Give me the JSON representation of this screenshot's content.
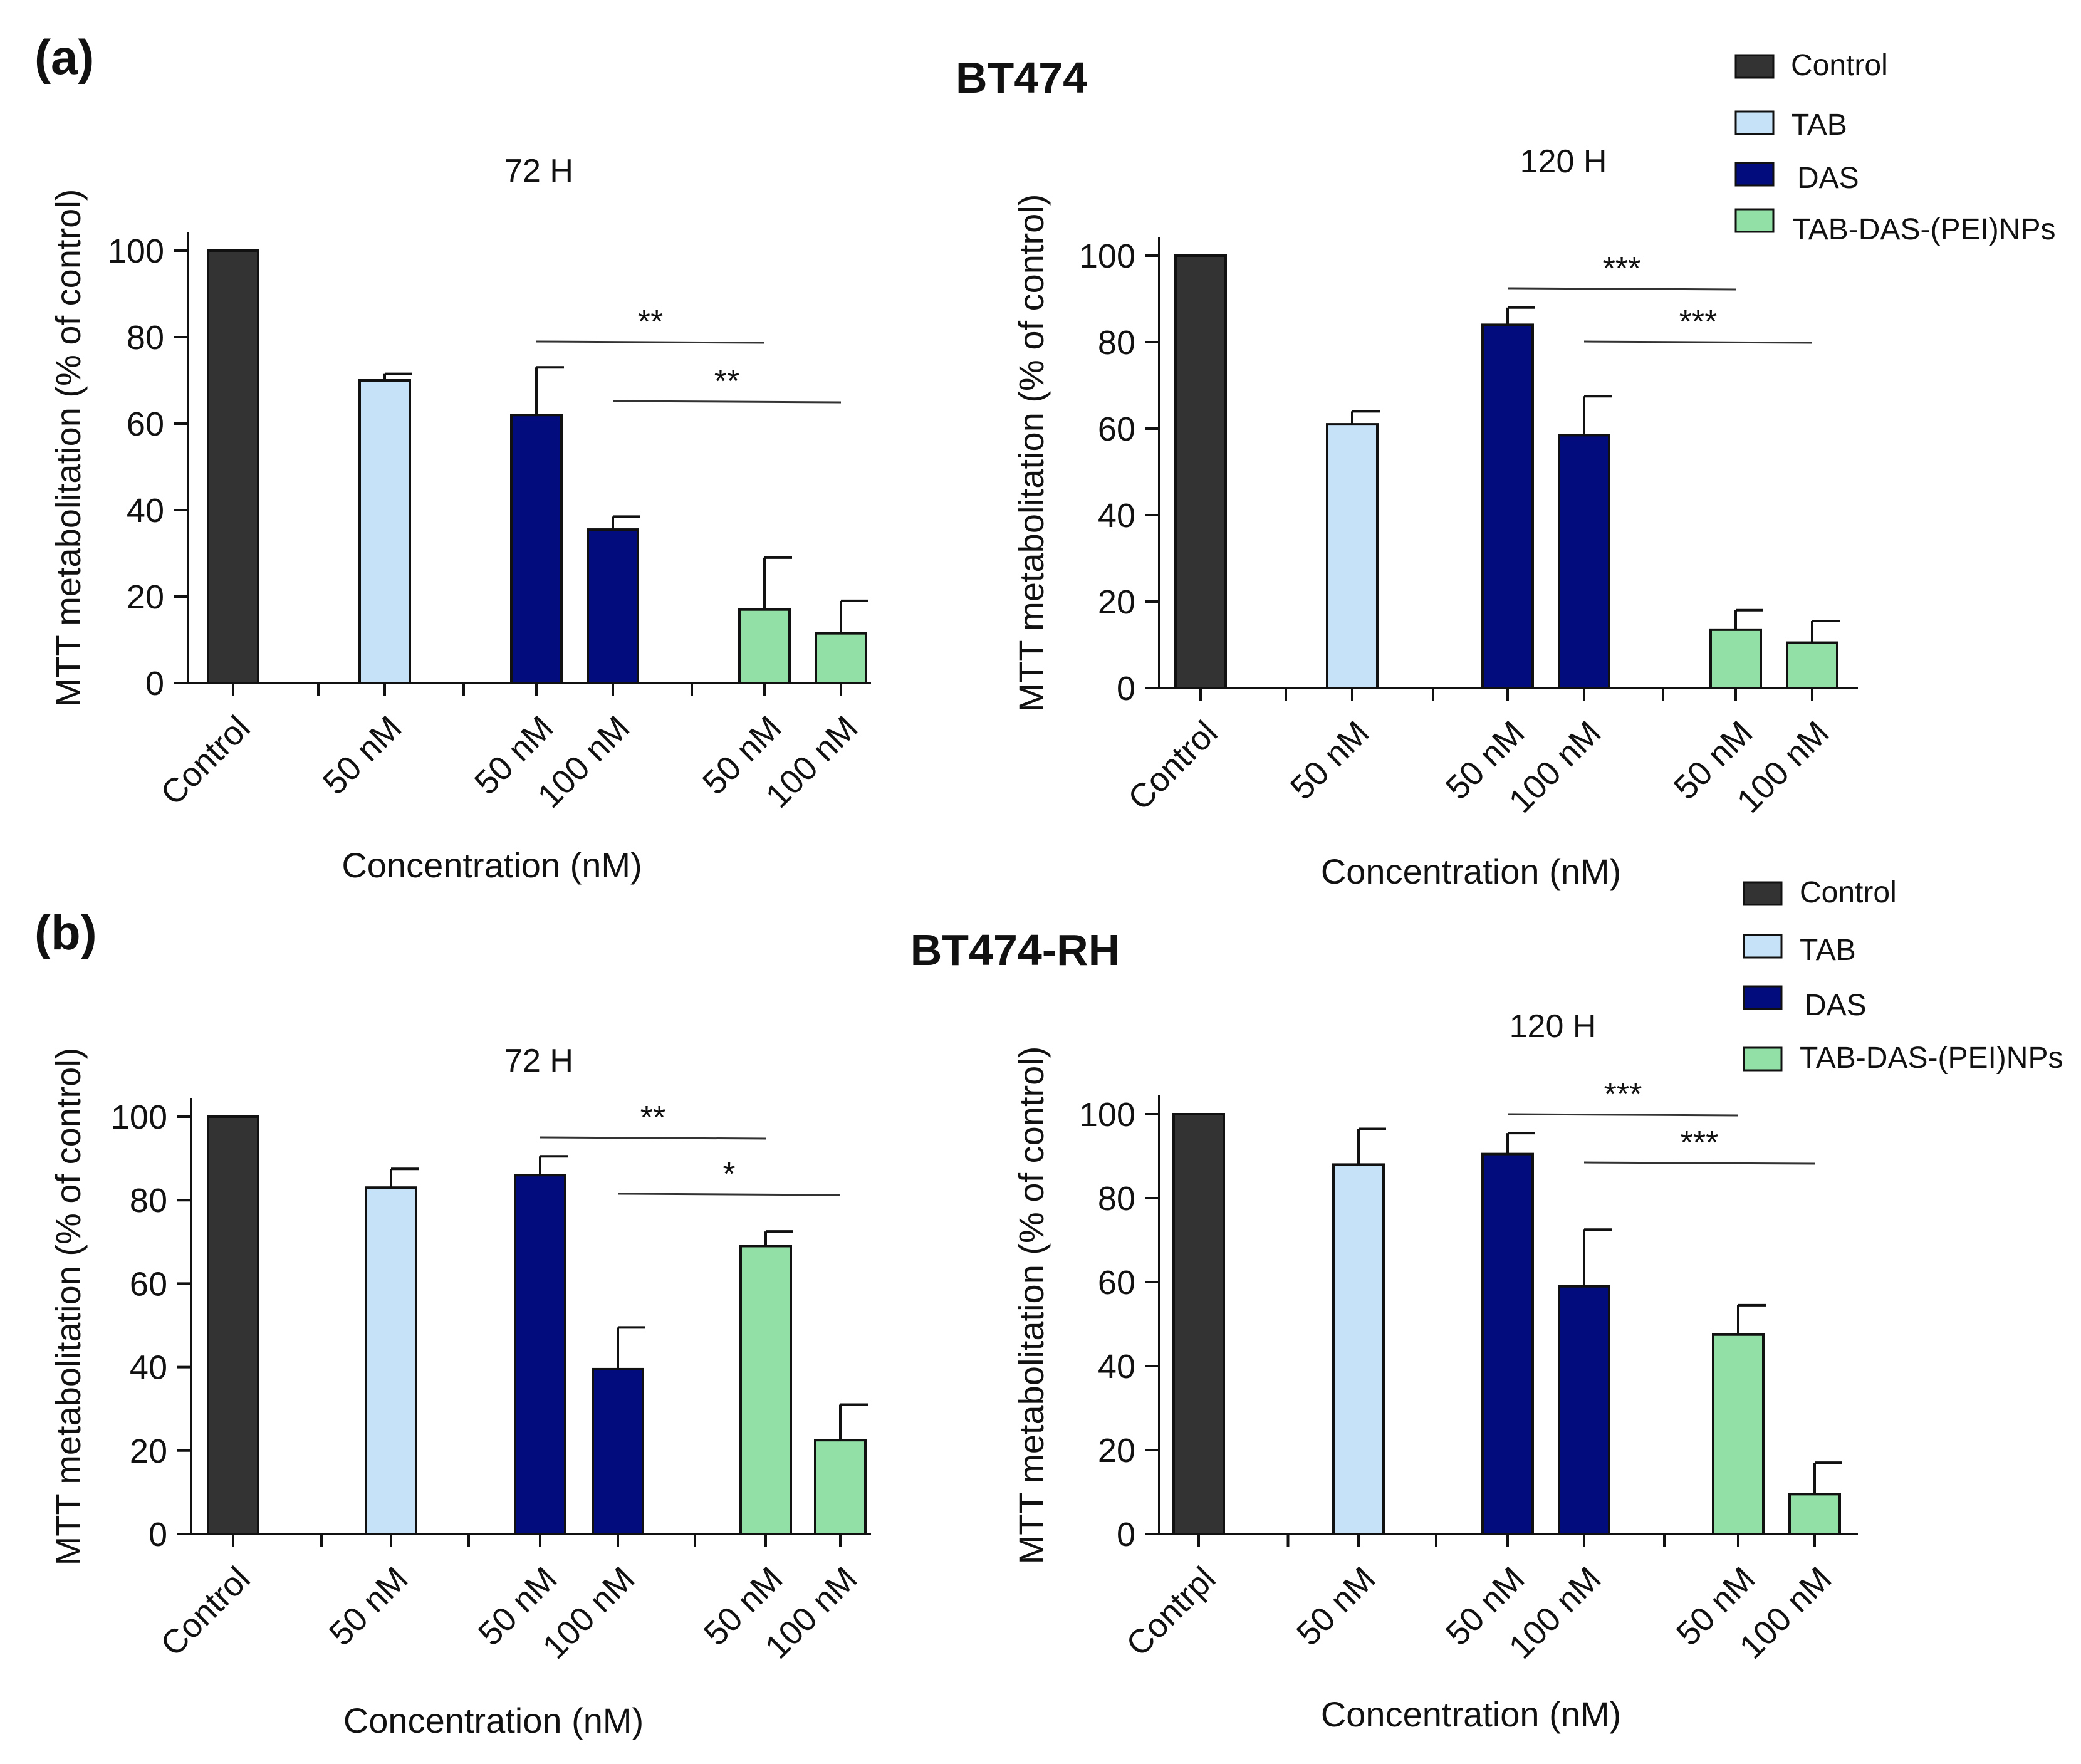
{
  "panels": [
    {
      "label": "(a)",
      "title": "BT474"
    },
    {
      "label": "(b)",
      "title": "BT474-RH"
    }
  ],
  "legend": [
    {
      "name": "Control",
      "color": "#333333"
    },
    {
      "name": "TAB",
      "color": "#c6e2f8"
    },
    {
      "name": "DAS",
      "color": "#020c7c"
    },
    {
      "name": "TAB-DAS-(PEI)NPs",
      "color": "#92e0a6"
    }
  ],
  "chart_data": [
    {
      "type": "bar",
      "panel": "(a) BT474",
      "title": "72 H",
      "xlabel": "Concentration (nM)",
      "ylabel": "MTT metabolitation (% of control)",
      "ylim": [
        0,
        100
      ],
      "yticks": [
        0,
        20,
        40,
        60,
        80,
        100
      ],
      "categories": [
        "Control",
        "50 nM",
        "50 nM",
        "100 nM",
        "50 nM",
        "100 nM"
      ],
      "groups": [
        "Control",
        "TAB",
        "DAS",
        "DAS",
        "TAB-DAS-(PEI)NPs",
        "TAB-DAS-(PEI)NPs"
      ],
      "values": [
        100,
        70,
        62,
        35.5,
        17,
        11.5
      ],
      "errors": [
        0,
        1.5,
        11,
        3,
        12,
        7.5
      ],
      "significance": [
        {
          "from": 2,
          "to": 4,
          "label": "**"
        },
        {
          "from": 3,
          "to": 5,
          "label": "**"
        }
      ]
    },
    {
      "type": "bar",
      "panel": "(a) BT474",
      "title": "120 H",
      "xlabel": "Concentration (nM)",
      "ylabel": "MTT metabolitation (% of control)",
      "ylim": [
        0,
        100
      ],
      "yticks": [
        0,
        20,
        40,
        60,
        80,
        100
      ],
      "categories": [
        "Control",
        "50 nM",
        "50 nM",
        "100 nM",
        "50 nM",
        "100 nM"
      ],
      "groups": [
        "Control",
        "TAB",
        "DAS",
        "DAS",
        "TAB-DAS-(PEI)NPs",
        "TAB-DAS-(PEI)NPs"
      ],
      "values": [
        100,
        61,
        84,
        58.5,
        13.5,
        10.5
      ],
      "errors": [
        0,
        3,
        4,
        9,
        4.5,
        5
      ],
      "significance": [
        {
          "from": 2,
          "to": 4,
          "label": "***"
        },
        {
          "from": 3,
          "to": 5,
          "label": "***"
        }
      ]
    },
    {
      "type": "bar",
      "panel": "(b) BT474-RH",
      "title": "72 H",
      "xlabel": "Concentration (nM)",
      "ylabel": "MTT metabolitation (% of control)",
      "ylim": [
        0,
        100
      ],
      "yticks": [
        0,
        20,
        40,
        60,
        80,
        100
      ],
      "categories": [
        "Control",
        "50 nM",
        "50 nM",
        "100 nM",
        "50 nM",
        "100 nM"
      ],
      "groups": [
        "Control",
        "TAB",
        "DAS",
        "DAS",
        "TAB-DAS-(PEI)NPs",
        "TAB-DAS-(PEI)NPs"
      ],
      "values": [
        100,
        83,
        86,
        39.5,
        69,
        22.5
      ],
      "errors": [
        0,
        4.5,
        4.5,
        10,
        3.5,
        8.5
      ],
      "significance": [
        {
          "from": 2,
          "to": 4,
          "label": "**"
        },
        {
          "from": 3,
          "to": 5,
          "label": "*"
        }
      ]
    },
    {
      "type": "bar",
      "panel": "(b) BT474-RH",
      "title": "120 H",
      "xlabel": "Concentration (nM)",
      "ylabel": "MTT metabolitation (% of control)",
      "ylim": [
        0,
        100
      ],
      "yticks": [
        0,
        20,
        40,
        60,
        80,
        100
      ],
      "categories": [
        "Contrpl",
        "50 nM",
        "50 nM",
        "100 nM",
        "50 nM",
        "100 nM"
      ],
      "groups": [
        "Control",
        "TAB",
        "DAS",
        "DAS",
        "TAB-DAS-(PEI)NPs",
        "TAB-DAS-(PEI)NPs"
      ],
      "values": [
        100,
        88,
        90.5,
        59,
        47.5,
        9.5
      ],
      "errors": [
        0,
        8.5,
        5,
        13.5,
        7,
        7.5
      ],
      "significance": [
        {
          "from": 2,
          "to": 4,
          "label": "***"
        },
        {
          "from": 3,
          "to": 5,
          "label": "***"
        }
      ]
    }
  ]
}
